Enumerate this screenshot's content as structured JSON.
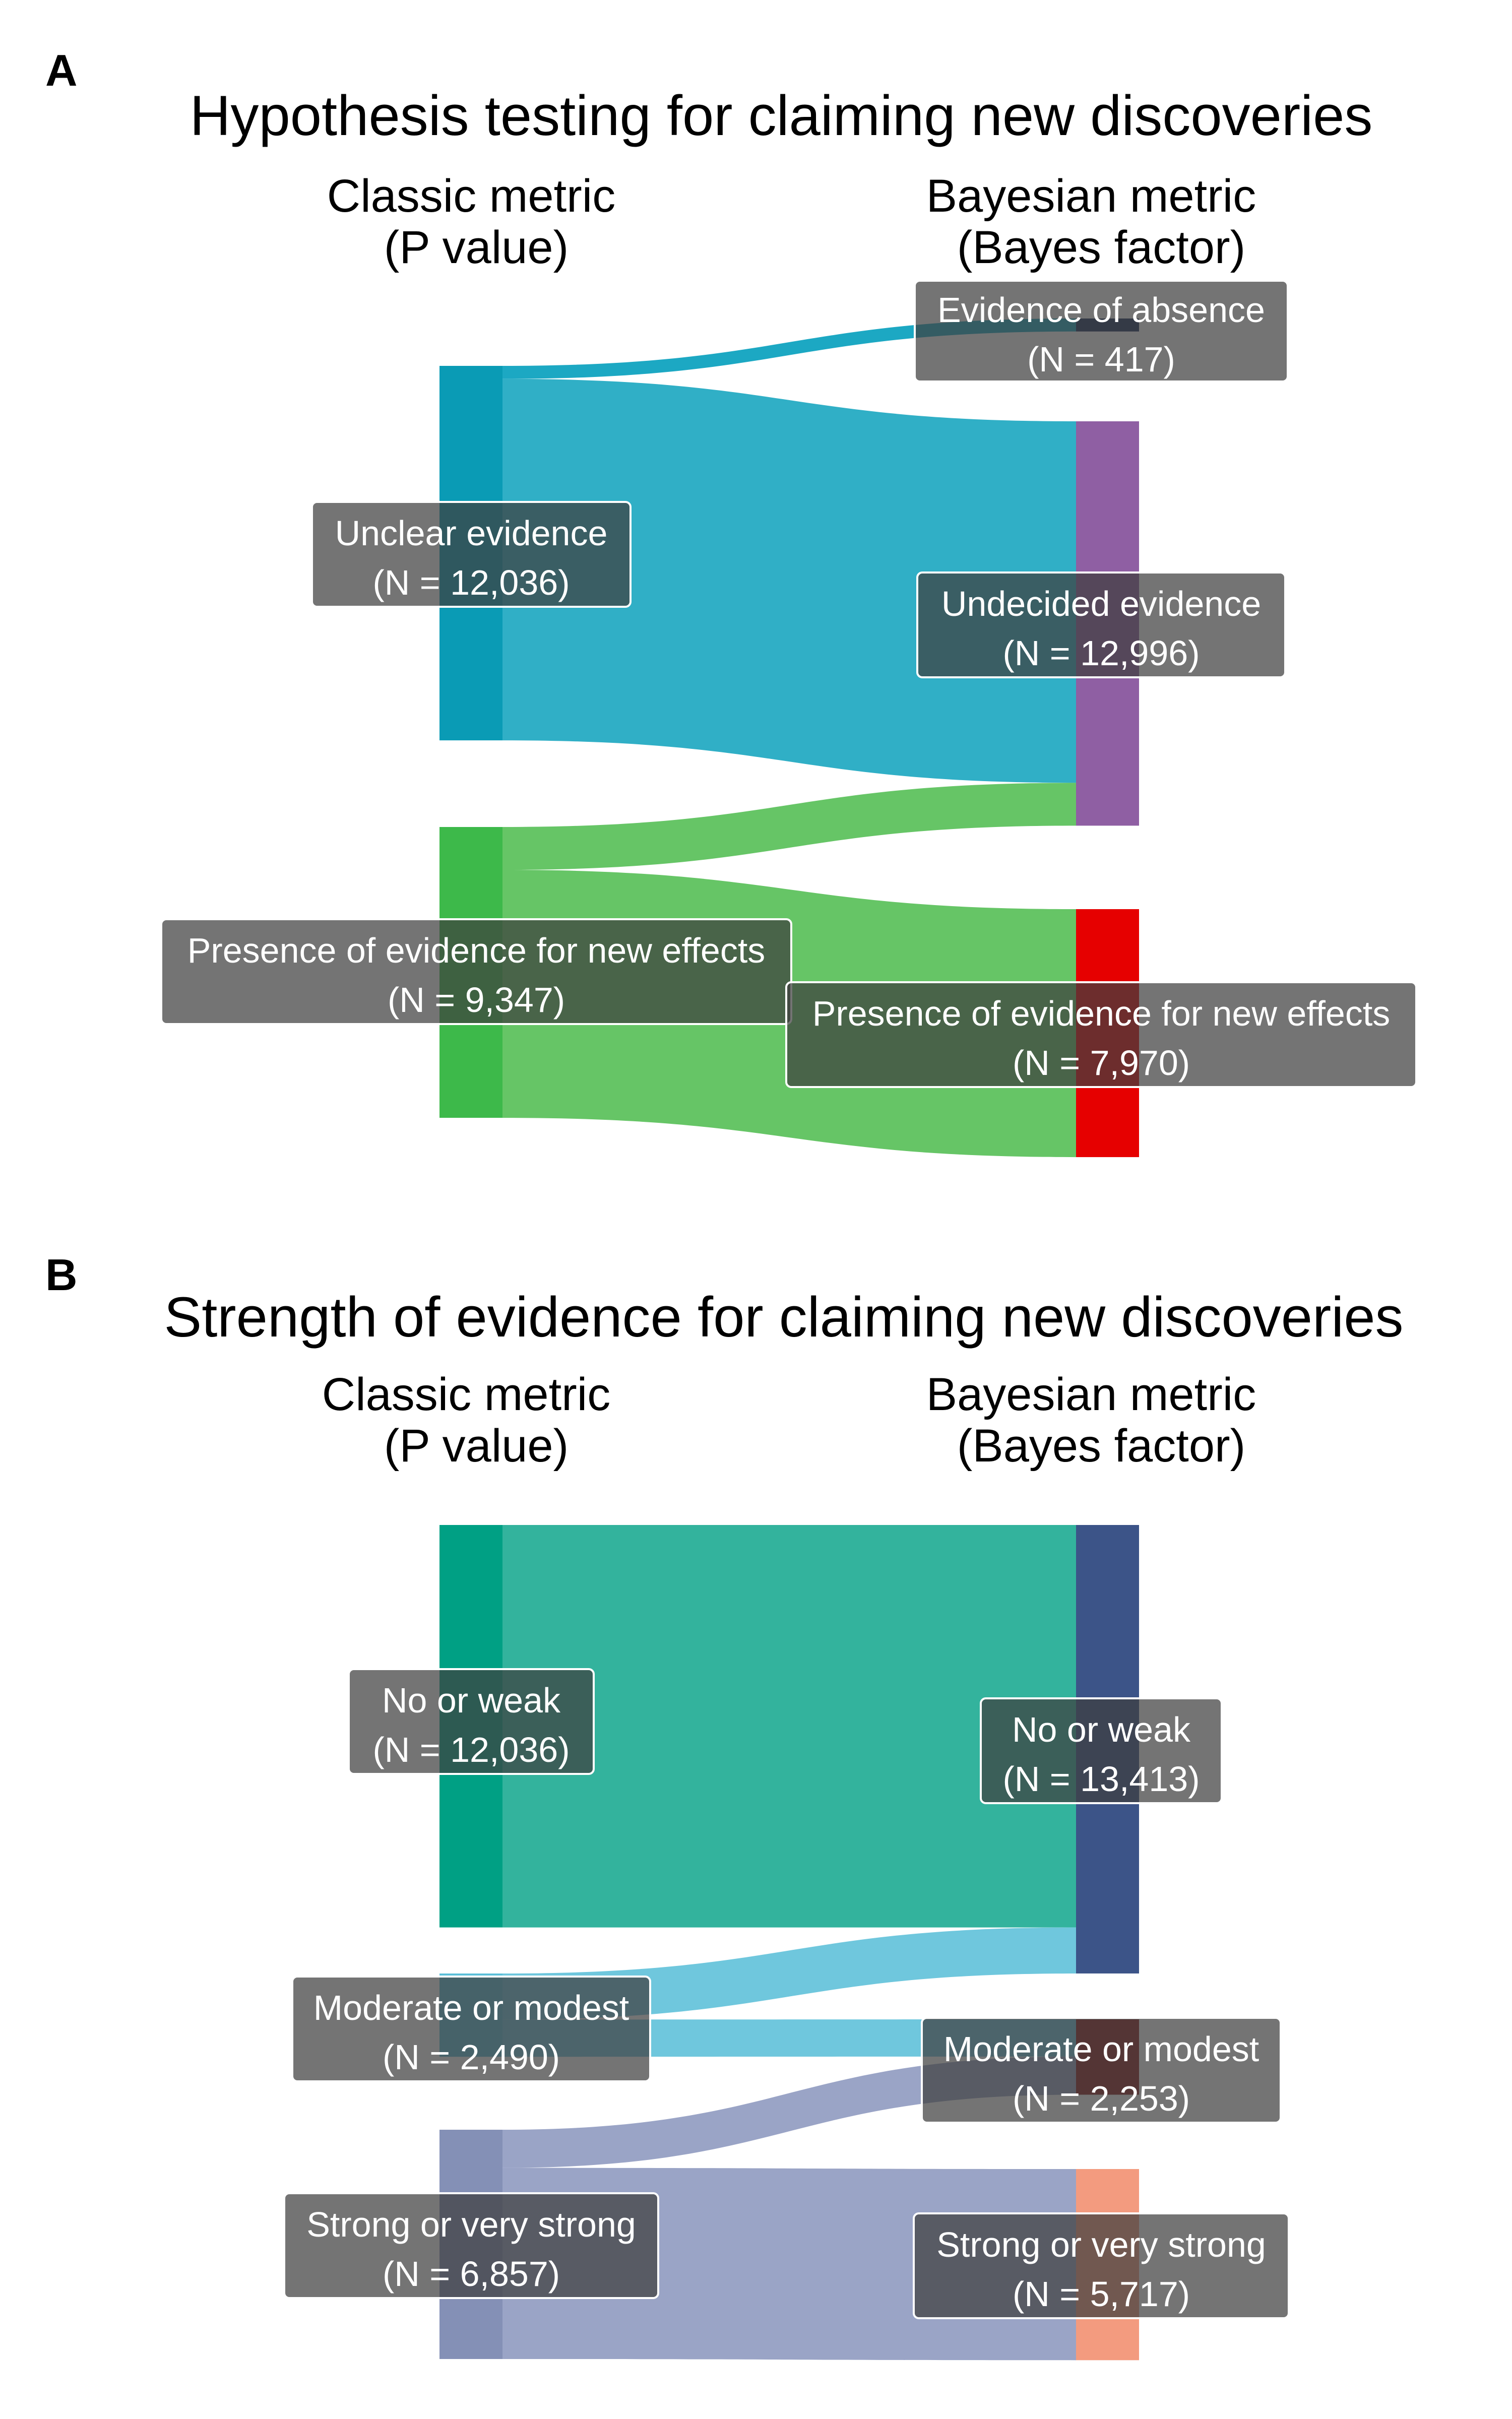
{
  "panels": [
    {
      "letter": "A",
      "title": "Hypothesis testing for claiming new discoveries",
      "left_axis": {
        "line1": "Classic metric",
        "line2": "(P value)"
      },
      "right_axis": {
        "line1": "Bayesian metric",
        "line2": "(Bayes factor)"
      },
      "left_nodes": [
        {
          "id": "unclear",
          "label": "Unclear evidence",
          "count": "(N = 12,036)",
          "n": 12036,
          "color": "#0a9bb5"
        },
        {
          "id": "presence",
          "label": "Presence of evidence for new effects",
          "count": "(N = 9,347)",
          "n": 9347,
          "color": "#3db94a"
        }
      ],
      "right_nodes": [
        {
          "id": "absence",
          "label": "Evidence of absence",
          "count": "(N = 417)",
          "n": 417,
          "color": "#1b2f5a"
        },
        {
          "id": "undecided",
          "label": "Undecided evidence",
          "count": "(N = 12,996)",
          "n": 12996,
          "color": "#8f5fa3"
        },
        {
          "id": "presence_r",
          "label": "Presence of evidence for new effects",
          "count": "(N = 7,970)",
          "n": 7970,
          "color": "#e60000"
        }
      ],
      "flows": [
        {
          "from": "unclear",
          "to": "absence",
          "value": 417,
          "color": "#1ca8c3"
        },
        {
          "from": "unclear",
          "to": "undecided",
          "value": 11619,
          "color": "#30afc6"
        },
        {
          "from": "presence",
          "to": "undecided",
          "value": 1377,
          "color": "#66c566"
        },
        {
          "from": "presence",
          "to": "presence_r",
          "value": 7970,
          "color": "#66c566"
        }
      ]
    },
    {
      "letter": "B",
      "title": "Strength of evidence for claiming new discoveries",
      "left_axis": {
        "line1": "Classic metric",
        "line2": "(P value)"
      },
      "right_axis": {
        "line1": "Bayesian metric",
        "line2": "(Bayes factor)"
      },
      "left_nodes": [
        {
          "id": "noweak",
          "label": "No or weak",
          "count": "(N = 12,036)",
          "n": 12036,
          "color": "#00a084"
        },
        {
          "id": "moderate",
          "label": "Moderate or modest",
          "count": "(N = 2,490)",
          "n": 2490,
          "color": "#5cbfd8"
        },
        {
          "id": "strong",
          "label": "Strong or very strong",
          "count": "(N = 6,857)",
          "n": 6857,
          "color": "#8490b6"
        }
      ],
      "right_nodes": [
        {
          "id": "noweak_r",
          "label": "No or weak",
          "count": "(N = 13,413)",
          "n": 13413,
          "color": "#3c5488"
        },
        {
          "id": "moderate_r",
          "label": "Moderate or modest",
          "count": "(N = 2,253)",
          "n": 2253,
          "color": "#8b1e1e"
        },
        {
          "id": "strong_r",
          "label": "Strong or very strong",
          "count": "(N = 5,717)",
          "n": 5717,
          "color": "#f39b7f"
        }
      ],
      "flows": [
        {
          "from": "noweak",
          "to": "noweak_r",
          "value": 12036,
          "color": "#33b39d"
        },
        {
          "from": "moderate",
          "to": "noweak_r",
          "value": 1377,
          "color": "#6fc7dd"
        },
        {
          "from": "moderate",
          "to": "moderate_r",
          "value": 1113,
          "color": "#6fc7dd"
        },
        {
          "from": "strong",
          "to": "moderate_r",
          "value": 1140,
          "color": "#9aa4c6"
        },
        {
          "from": "strong",
          "to": "strong_r",
          "value": 5717,
          "color": "#9aa4c6"
        }
      ]
    }
  ]
}
